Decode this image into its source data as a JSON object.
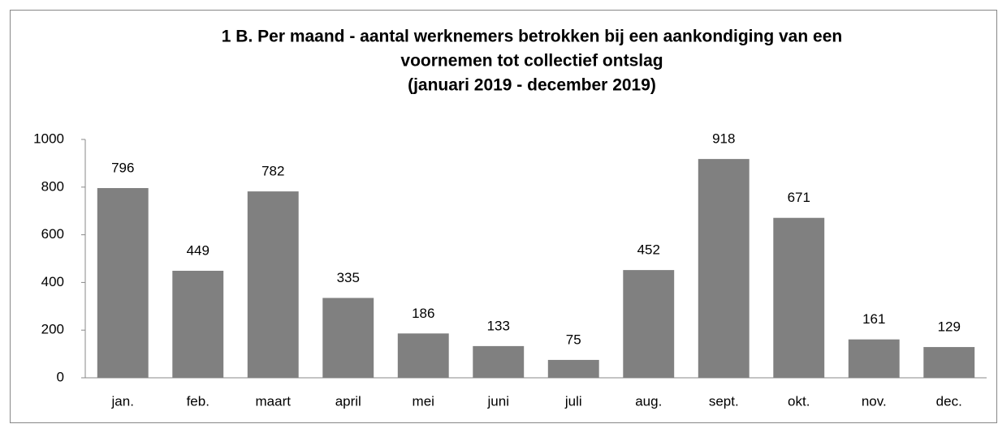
{
  "chart_data": {
    "type": "bar",
    "title": [
      "1 B. Per maand - aantal werknemers betrokken bij een aankondiging van een",
      "voornemen tot collectief ontslag",
      "(januari 2019 - december 2019)"
    ],
    "categories": [
      "jan.",
      "feb.",
      "maart",
      "april",
      "mei",
      "juni",
      "juli",
      "aug.",
      "sept.",
      "okt.",
      "nov.",
      "dec."
    ],
    "values": [
      796,
      449,
      782,
      335,
      186,
      133,
      75,
      452,
      918,
      671,
      161,
      129
    ],
    "color": "#808080",
    "ylim": [
      0,
      1000
    ],
    "yticks": [
      0,
      200,
      400,
      600,
      800,
      1000
    ],
    "grid": false
  }
}
